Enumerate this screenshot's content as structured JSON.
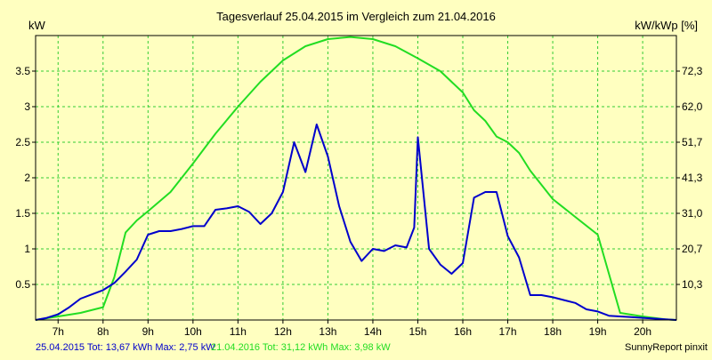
{
  "colors": {
    "background": "#ffffc0",
    "plot_background": "#ffffc0",
    "grid": "#33cc33",
    "series_2015": "#0000cc",
    "series_2016": "#22dd22",
    "text": "#000000"
  },
  "chart_data": {
    "type": "line",
    "title": "Tagesverlauf 25.04.2015 im Vergleich zum 21.04.2016",
    "ylabel_left": "kW",
    "ylabel_right": "kW/kWp [%]",
    "grid": true,
    "xlim": [
      6.5,
      20.75
    ],
    "ylim": [
      0,
      4.0
    ],
    "x_ticks": [
      7,
      8,
      9,
      10,
      11,
      12,
      13,
      14,
      15,
      16,
      17,
      18,
      19,
      20
    ],
    "x_tick_labels": [
      "7h",
      "8h",
      "9h",
      "10h",
      "11h",
      "12h",
      "13h",
      "14h",
      "15h",
      "16h",
      "17h",
      "18h",
      "19h",
      "20h"
    ],
    "y_ticks_left": [
      0.5,
      1,
      1.5,
      2,
      2.5,
      3,
      3.5
    ],
    "y_tick_labels_left": [
      "0.5",
      "1",
      "1.5",
      "2",
      "2.5",
      "3",
      "3.5"
    ],
    "y_tick_labels_right": [
      "10,3",
      "20,7",
      "31,0",
      "41,3",
      "51,7",
      "62,0",
      "72,3"
    ],
    "series": [
      {
        "label": "25.04.2015 Tot: 13,67 kWh Max: 2,75 kW",
        "color": "#0000cc",
        "x": [
          6.5,
          6.75,
          7.0,
          7.25,
          7.5,
          7.75,
          8.0,
          8.25,
          8.5,
          8.75,
          9.0,
          9.25,
          9.5,
          9.75,
          10.0,
          10.25,
          10.5,
          10.75,
          11.0,
          11.25,
          11.5,
          11.75,
          12.0,
          12.25,
          12.5,
          12.75,
          13.0,
          13.25,
          13.5,
          13.75,
          14.0,
          14.25,
          14.5,
          14.75,
          14.92,
          15.0,
          15.25,
          15.5,
          15.75,
          16.0,
          16.25,
          16.5,
          16.75,
          17.0,
          17.25,
          17.5,
          17.75,
          18.0,
          18.25,
          18.5,
          18.75,
          19.0,
          19.25,
          19.5,
          19.75,
          20.0,
          20.25,
          20.5,
          20.75
        ],
        "y": [
          0.0,
          0.03,
          0.08,
          0.18,
          0.3,
          0.36,
          0.42,
          0.52,
          0.68,
          0.85,
          1.2,
          1.25,
          1.25,
          1.28,
          1.32,
          1.32,
          1.55,
          1.57,
          1.6,
          1.52,
          1.35,
          1.5,
          1.8,
          2.5,
          2.08,
          2.75,
          2.3,
          1.6,
          1.1,
          0.83,
          1.0,
          0.97,
          1.05,
          1.02,
          1.3,
          2.57,
          1.0,
          0.78,
          0.65,
          0.8,
          1.72,
          1.8,
          1.8,
          1.18,
          0.88,
          0.35,
          0.35,
          0.32,
          0.28,
          0.24,
          0.15,
          0.12,
          0.06,
          0.05,
          0.04,
          0.03,
          0.02,
          0.01,
          0.0
        ]
      },
      {
        "label": "21.04.2016 Tot: 31,12 kWh Max: 3,98 kW",
        "color": "#22dd22",
        "x": [
          6.5,
          7.0,
          7.5,
          8.0,
          8.25,
          8.5,
          8.75,
          9.0,
          9.5,
          10.0,
          10.5,
          11.0,
          11.5,
          12.0,
          12.5,
          13.0,
          13.5,
          14.0,
          14.5,
          15.0,
          15.5,
          16.0,
          16.25,
          16.5,
          16.75,
          17.0,
          17.25,
          17.5,
          18.0,
          18.5,
          19.0,
          19.25,
          19.5,
          20.0,
          20.5,
          20.75
        ],
        "y": [
          0.0,
          0.05,
          0.1,
          0.18,
          0.6,
          1.23,
          1.4,
          1.53,
          1.8,
          2.2,
          2.62,
          3.0,
          3.35,
          3.65,
          3.85,
          3.95,
          3.98,
          3.95,
          3.85,
          3.68,
          3.5,
          3.2,
          2.95,
          2.8,
          2.58,
          2.5,
          2.35,
          2.1,
          1.7,
          1.45,
          1.2,
          0.65,
          0.1,
          0.05,
          0.01,
          0.0
        ]
      }
    ],
    "footer_credit": "SunnyReport pinxit"
  }
}
